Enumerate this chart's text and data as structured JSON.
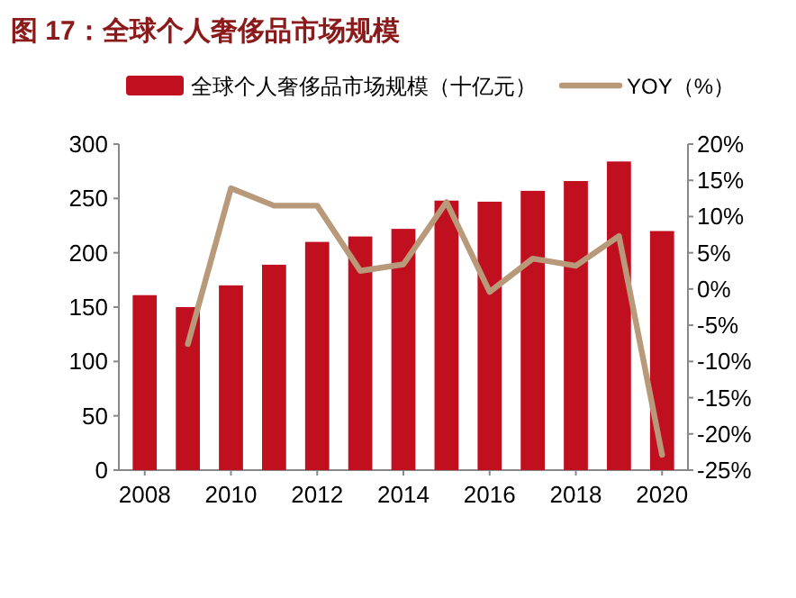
{
  "chart_data": {
    "type": "bar",
    "title": "图 17：全球个人奢侈品市场规模",
    "x": [
      2008,
      2009,
      2010,
      2011,
      2012,
      2013,
      2014,
      2015,
      2016,
      2017,
      2018,
      2019,
      2020
    ],
    "xlim": [
      2007.4,
      2020.6
    ],
    "xticks": [
      2008,
      2010,
      2012,
      2014,
      2016,
      2018,
      2020
    ],
    "ylim": [
      0,
      300
    ],
    "yticks": [
      0,
      50,
      100,
      150,
      200,
      250,
      300
    ],
    "y2lim": [
      -25,
      20
    ],
    "y2ticks": [
      {
        "value": -25,
        "label": "-25%"
      },
      {
        "value": -20,
        "label": "-20%"
      },
      {
        "value": -15,
        "label": "-15%"
      },
      {
        "value": -10,
        "label": "-10%"
      },
      {
        "value": -5,
        "label": "-5%"
      },
      {
        "value": 0,
        "label": "0%"
      },
      {
        "value": 5,
        "label": "5%"
      },
      {
        "value": 10,
        "label": "10%"
      },
      {
        "value": 15,
        "label": "15%"
      },
      {
        "value": 20,
        "label": "20%"
      }
    ],
    "legend": "top",
    "grid": false,
    "series": [
      {
        "name": "全球个人奢侈品市场规模（十亿元）",
        "color": "#c00f1e",
        "values": [
          161,
          150,
          170,
          189,
          210,
          215,
          222,
          248,
          247,
          257,
          266,
          284,
          220
        ]
      },
      {
        "name": "YOY（%）",
        "type": "line",
        "axis": "y2",
        "color": "#b8997a",
        "values": [
          null,
          -7.6,
          13.9,
          11.5,
          11.5,
          2.5,
          3.4,
          12,
          -0.4,
          4.2,
          3.2,
          7.3,
          -22.9
        ]
      }
    ]
  }
}
